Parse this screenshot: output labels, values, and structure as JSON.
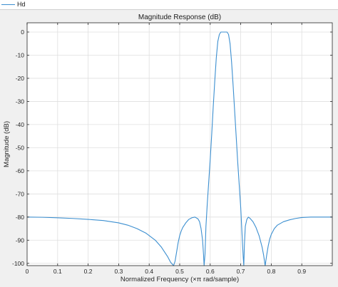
{
  "legend": {
    "label": "Hd",
    "color": "#3c8fd0"
  },
  "chart_data": {
    "type": "line",
    "title": "Magnitude Response (dB)",
    "xlabel": "Normalized Frequency (×π rad/sample)",
    "ylabel": "Magnitude (dB)",
    "xlim": [
      0,
      1
    ],
    "ylim": [
      -101,
      4
    ],
    "xticks": [
      0,
      0.1,
      0.2,
      0.3,
      0.4,
      0.5,
      0.6,
      0.7,
      0.8,
      0.9
    ],
    "xtick_labels": [
      "0",
      "0.1",
      "0.2",
      "0.3",
      "0.4",
      "0.5",
      "0.6",
      "0.7",
      "0.8",
      "0.9"
    ],
    "yticks": [
      0,
      -10,
      -20,
      -30,
      -40,
      -50,
      -60,
      -70,
      -80,
      -90,
      -100
    ],
    "ytick_labels": [
      "0",
      "-10",
      "-20",
      "-30",
      "-40",
      "-50",
      "-60",
      "-70",
      "-80",
      "-90",
      "-100"
    ],
    "grid": true,
    "legend_position": "top-left",
    "series": [
      {
        "color": "#3c8fd0",
        "x": [
          0,
          0.05,
          0.1,
          0.15,
          0.2,
          0.25,
          0.3,
          0.33,
          0.36,
          0.39,
          0.42,
          0.44,
          0.46,
          0.47,
          0.48,
          0.485,
          0.49,
          0.495,
          0.5,
          0.505,
          0.51,
          0.52,
          0.53,
          0.54,
          0.55,
          0.56,
          0.565,
          0.57,
          0.575,
          0.578,
          0.58,
          0.583,
          0.586,
          0.59,
          0.595,
          0.6,
          0.605,
          0.61,
          0.615,
          0.62,
          0.625,
          0.63,
          0.635,
          0.64,
          0.645,
          0.65,
          0.655,
          0.66,
          0.665,
          0.67,
          0.675,
          0.68,
          0.685,
          0.69,
          0.695,
          0.7,
          0.703,
          0.706,
          0.708,
          0.71,
          0.712,
          0.715,
          0.72,
          0.725,
          0.73,
          0.74,
          0.75,
          0.76,
          0.77,
          0.775,
          0.78,
          0.785,
          0.79,
          0.795,
          0.8,
          0.81,
          0.82,
          0.84,
          0.86,
          0.88,
          0.9,
          0.93,
          0.96,
          1.0
        ],
        "y": [
          -80,
          -80.1,
          -80.3,
          -80.6,
          -81,
          -81.5,
          -82.5,
          -83.5,
          -85,
          -87,
          -90,
          -93,
          -97,
          -99.5,
          -101,
          -99,
          -95,
          -91,
          -88,
          -86,
          -84.5,
          -82.5,
          -81,
          -80.3,
          -80,
          -80.8,
          -82,
          -85,
          -90,
          -96,
          -101,
          -96,
          -84,
          -75,
          -65,
          -55,
          -44,
          -32,
          -21,
          -11,
          -4,
          -1,
          0,
          0,
          0,
          0,
          0,
          -1,
          -5,
          -13,
          -23,
          -34,
          -45,
          -56,
          -66,
          -76,
          -84,
          -92,
          -97,
          -101,
          -92,
          -84,
          -81,
          -80,
          -80.5,
          -82,
          -84.5,
          -88,
          -93,
          -96.5,
          -101,
          -96.5,
          -92.5,
          -89.5,
          -87.5,
          -85,
          -83.5,
          -82,
          -81.2,
          -80.6,
          -80.2,
          -80,
          -80,
          -80
        ]
      }
    ]
  }
}
